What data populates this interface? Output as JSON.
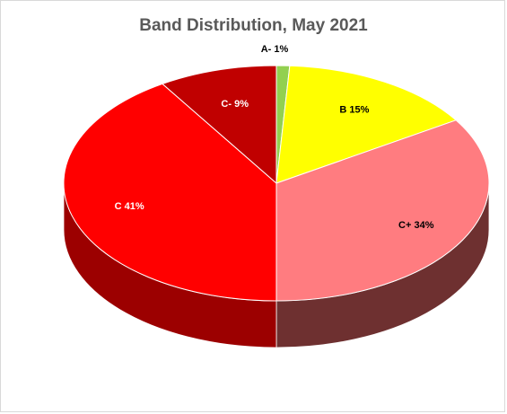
{
  "chart_data": {
    "type": "pie",
    "title": "Band Distribution, May 2021",
    "categories": [
      "A-",
      "B",
      "C+",
      "C",
      "C-"
    ],
    "values": [
      1,
      15,
      34,
      41,
      9
    ],
    "labels": [
      "A- 1%",
      "B 15%",
      "C+ 34%",
      "C 41%",
      "C- 9%"
    ],
    "colors": [
      "#92d050",
      "#ffff00",
      "#ff7c80",
      "#ff0000",
      "#c00000"
    ],
    "side_colors": [
      "#5a8a2a",
      "#9e9e00",
      "#6e3030",
      "#9c0000",
      "#6e0000"
    ],
    "label_colors": [
      "#000000",
      "#000000",
      "#000000",
      "#ffffff",
      "#ffffff"
    ],
    "style": "3d",
    "legend": "none"
  }
}
